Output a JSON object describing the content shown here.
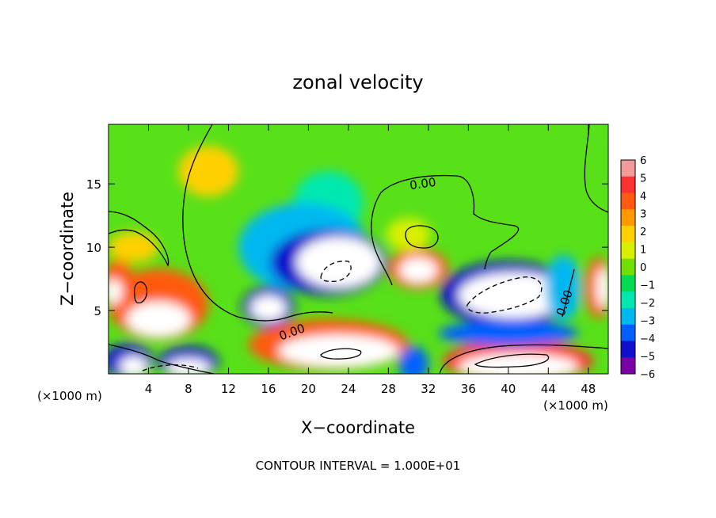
{
  "chart_data": {
    "type": "heatmap",
    "title": "zonal velocity",
    "xlabel": "X−coordinate",
    "ylabel": "Z−coordinate",
    "x_unit_left": "(×1000 m)",
    "x_unit_right": "(×1000 m)",
    "footer": "CONTOUR INTERVAL = 1.000E+01",
    "xlim": [
      0,
      50
    ],
    "ylim": [
      0,
      19.7
    ],
    "x_ticks": [
      4,
      8,
      12,
      16,
      20,
      24,
      28,
      32,
      36,
      40,
      44,
      48
    ],
    "y_ticks": [
      5,
      10,
      15
    ],
    "colorbar": {
      "min": -6,
      "max": 6,
      "labels": [
        6,
        5,
        4,
        3,
        2,
        1,
        0,
        -1,
        -2,
        -3,
        -4,
        -5,
        -6
      ],
      "colors": [
        "#f39a9a",
        "#ff3030",
        "#ff5a10",
        "#ff9900",
        "#ffd000",
        "#d8f000",
        "#70e000",
        "#00dc50",
        "#00e8b0",
        "#00b8f0",
        "#0060ff",
        "#1010cc",
        "#7a00a8"
      ]
    },
    "contour_labels": [
      {
        "text": "0.00",
        "x": 31.5,
        "y": 14.7
      },
      {
        "text": "0.00",
        "x": 18.5,
        "y": 3.0
      },
      {
        "text": "0.00",
        "x": 46.0,
        "y": 5.5
      }
    ],
    "regions": [
      {
        "value": 0.8,
        "desc": "background"
      },
      {
        "value": -1.8,
        "x": 22,
        "y": 13.5,
        "rx": 3.5,
        "ry": 2.5
      },
      {
        "value": -2.5,
        "x": 19.5,
        "y": 10,
        "rx": 6.5,
        "ry": 3.5
      },
      {
        "value": -4.5,
        "x": 22,
        "y": 8.8,
        "rx": 5.8,
        "ry": 2.6
      },
      {
        "value": -6.5,
        "x": 23,
        "y": 8.8,
        "rx": 4.2,
        "ry": 2.0
      },
      {
        "value": -5,
        "x": 16,
        "y": 5.3,
        "rx": 2.6,
        "ry": 1.6
      },
      {
        "value": -6.5,
        "x": 16,
        "y": 5.2,
        "rx": 1.8,
        "ry": 1.0
      },
      {
        "value": -5,
        "x": 40,
        "y": 6.3,
        "rx": 6.8,
        "ry": 2.6
      },
      {
        "value": -6.5,
        "x": 40.5,
        "y": 6.2,
        "rx": 5.5,
        "ry": 1.8
      },
      {
        "value": -3,
        "x": 45.5,
        "y": 6.8,
        "rx": 1.8,
        "ry": 2.6
      },
      {
        "value": 4.5,
        "x": 31,
        "y": 8.3,
        "rx": 3.0,
        "ry": 1.6
      },
      {
        "value": 6.5,
        "x": 31,
        "y": 8.2,
        "rx": 1.9,
        "ry": 1.0
      },
      {
        "value": 4.5,
        "x": 5,
        "y": 5.5,
        "rx": 5.0,
        "ry": 2.8
      },
      {
        "value": 6.5,
        "x": 5,
        "y": 4.3,
        "rx": 3.2,
        "ry": 1.4
      },
      {
        "value": 4.5,
        "x": 1,
        "y": 7,
        "rx": 1.6,
        "ry": 2.0
      },
      {
        "value": 6.5,
        "x": 0.5,
        "y": 6.5,
        "rx": 0.9,
        "ry": 1.0
      },
      {
        "value": 4.5,
        "x": 22,
        "y": 2.3,
        "rx": 8.0,
        "ry": 2.0
      },
      {
        "value": 6.5,
        "x": 23,
        "y": 1.8,
        "rx": 6.0,
        "ry": 1.3
      },
      {
        "value": 5,
        "x": 41,
        "y": 1.0,
        "rx": 7.5,
        "ry": 1.6
      },
      {
        "value": 6.5,
        "x": 41,
        "y": 0.6,
        "rx": 6.0,
        "ry": 1.0
      },
      {
        "value": 4.5,
        "x": 49,
        "y": 6.8,
        "rx": 1.3,
        "ry": 2.4
      },
      {
        "value": 6.5,
        "x": 49.5,
        "y": 6.8,
        "rx": 0.7,
        "ry": 1.6
      },
      {
        "value": -5,
        "x": 2,
        "y": 1.0,
        "rx": 2.5,
        "ry": 1.4
      },
      {
        "value": -6.5,
        "x": 2.5,
        "y": 0.6,
        "rx": 1.4,
        "ry": 0.8
      },
      {
        "value": -5,
        "x": 8,
        "y": 0.9,
        "rx": 3.0,
        "ry": 1.3
      },
      {
        "value": -6.5,
        "x": 8,
        "y": 0.5,
        "rx": 2.2,
        "ry": 0.7
      },
      {
        "value": -4,
        "x": 30.5,
        "y": 0.8,
        "rx": 1.5,
        "ry": 1.4
      },
      {
        "value": -4,
        "x": 40,
        "y": 3.2,
        "rx": 7.0,
        "ry": 1.0
      },
      {
        "value": 1.5,
        "x": 30,
        "y": 11,
        "rx": 2.2,
        "ry": 1.3
      },
      {
        "value": 1.8,
        "x": 10,
        "y": 16,
        "rx": 3.0,
        "ry": 2.0
      },
      {
        "value": 2.2,
        "x": 2.5,
        "y": 10,
        "rx": 2.5,
        "ry": 1.2
      }
    ]
  }
}
